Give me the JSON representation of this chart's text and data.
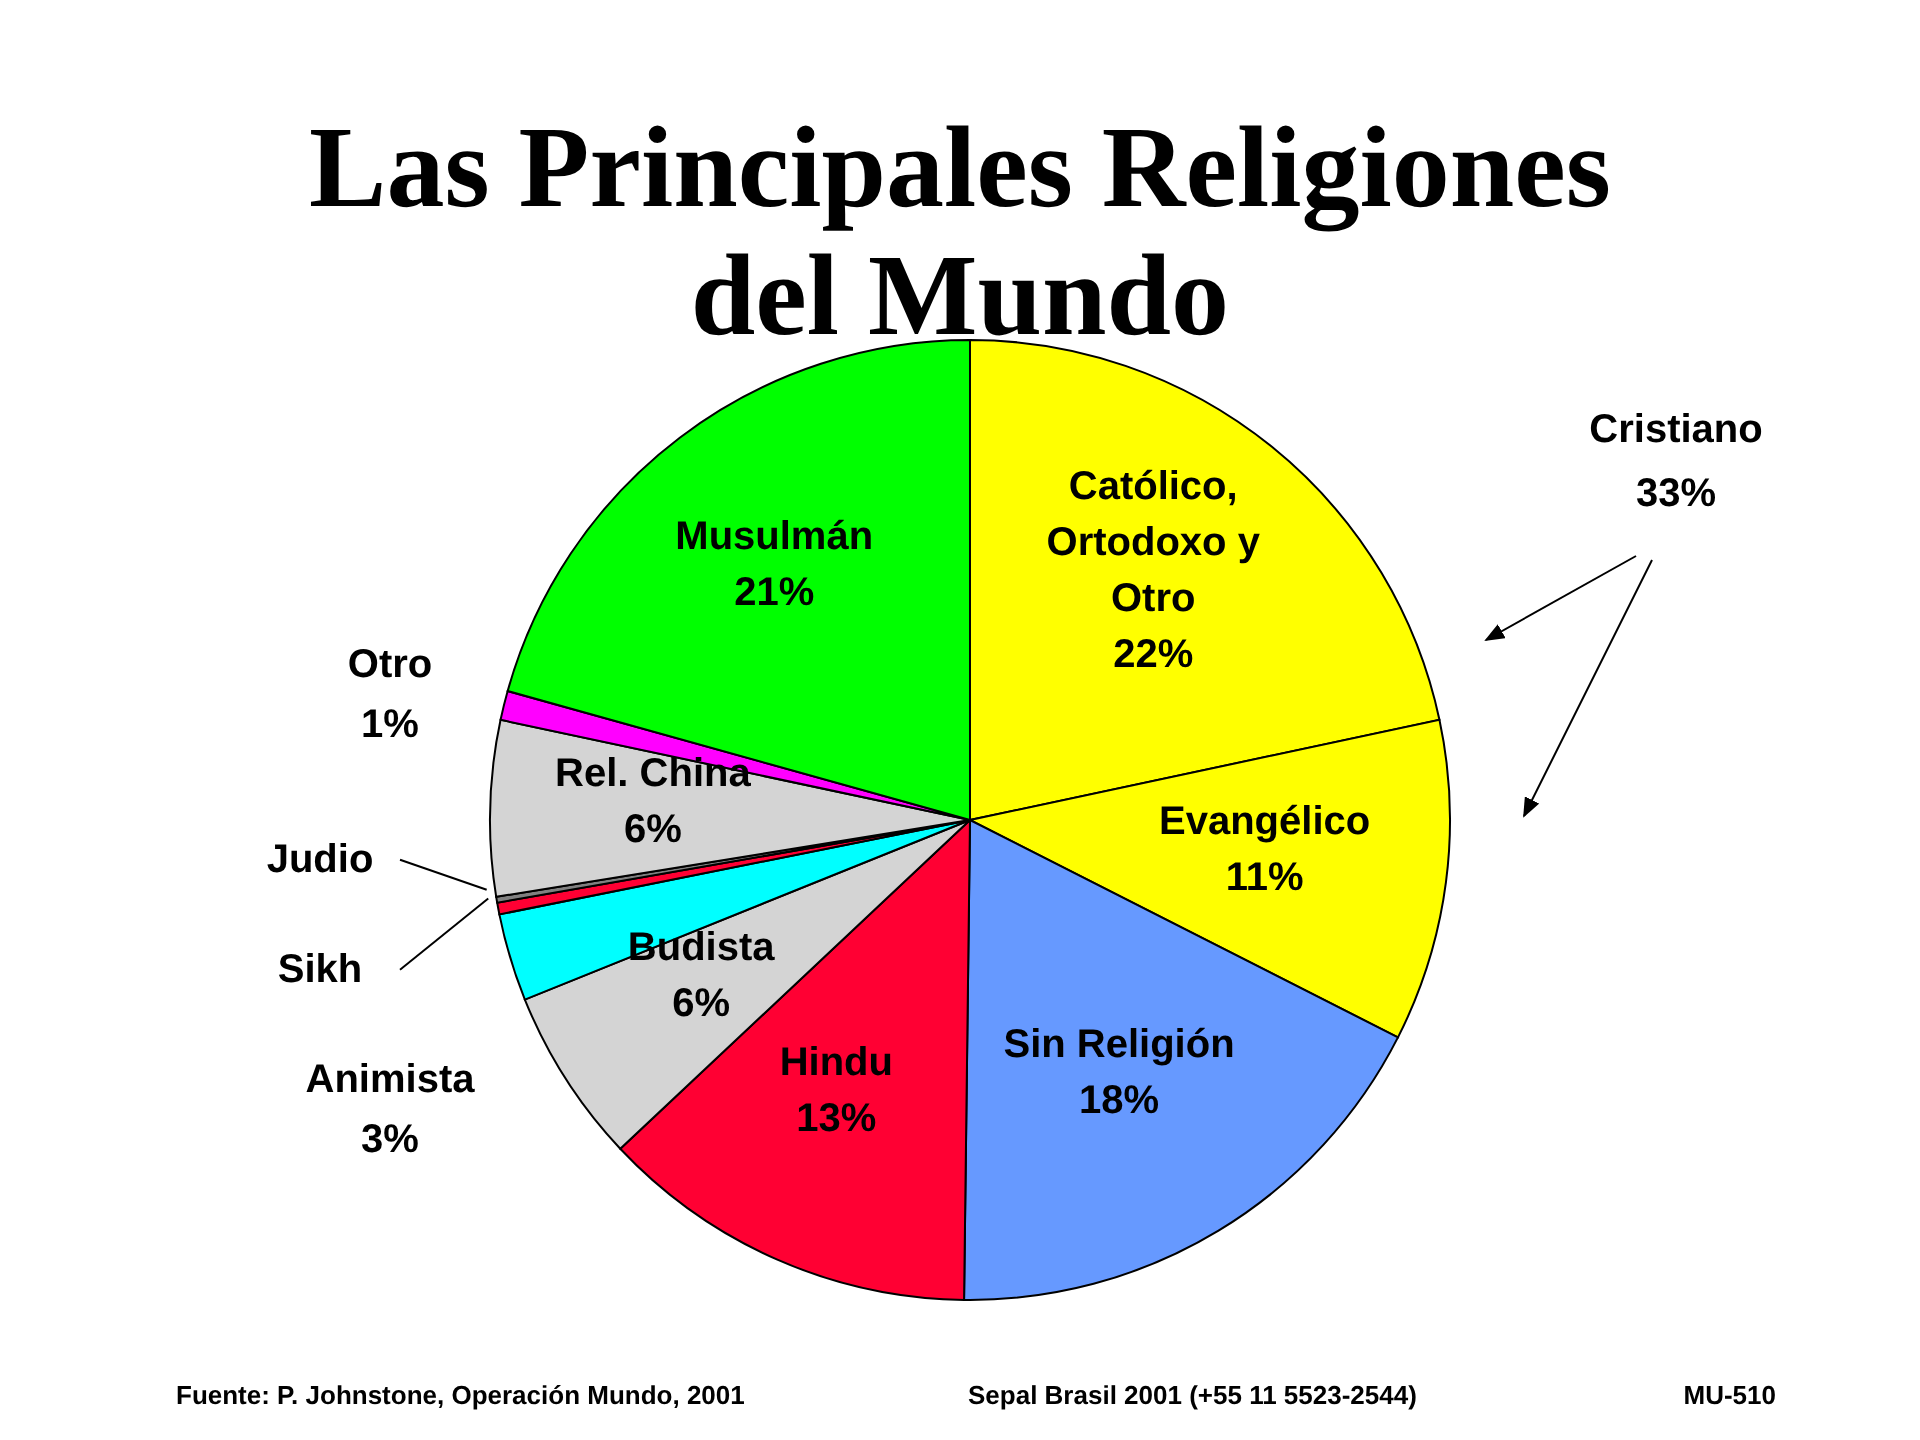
{
  "chart_data": {
    "type": "pie",
    "title": "Las Principales Religiones del Mundo",
    "categories": [
      "Católico, Ortodoxo y Otro",
      "Evangélico",
      "Sin Religión",
      "Hindu",
      "Budista",
      "Animista",
      "Sikh",
      "Judio",
      "Rel. China",
      "Otro",
      "Musulmán"
    ],
    "values": [
      22,
      11,
      18,
      13,
      6,
      3,
      0.4,
      0.2,
      6,
      1,
      21
    ],
    "value_labels": [
      "22%",
      "11%",
      "18%",
      "13%",
      "6%",
      "3%",
      null,
      null,
      "6%",
      "1%",
      "21%"
    ],
    "colors": [
      "#ffff00",
      "#ffff00",
      "#6699ff",
      "#ff0033",
      "#d4d4d4",
      "#00ffff",
      "#ff0033",
      "#808080",
      "#d4d4d4",
      "#ff00ff",
      "#00ff00"
    ],
    "annotations": [
      "Cristiano 33%",
      "Fuente: P. Johnstone, Operación Mundo, 2001",
      "Sepal Brasil 2001 (+55 11 5523-2544)",
      "MU-510"
    ]
  }
}
